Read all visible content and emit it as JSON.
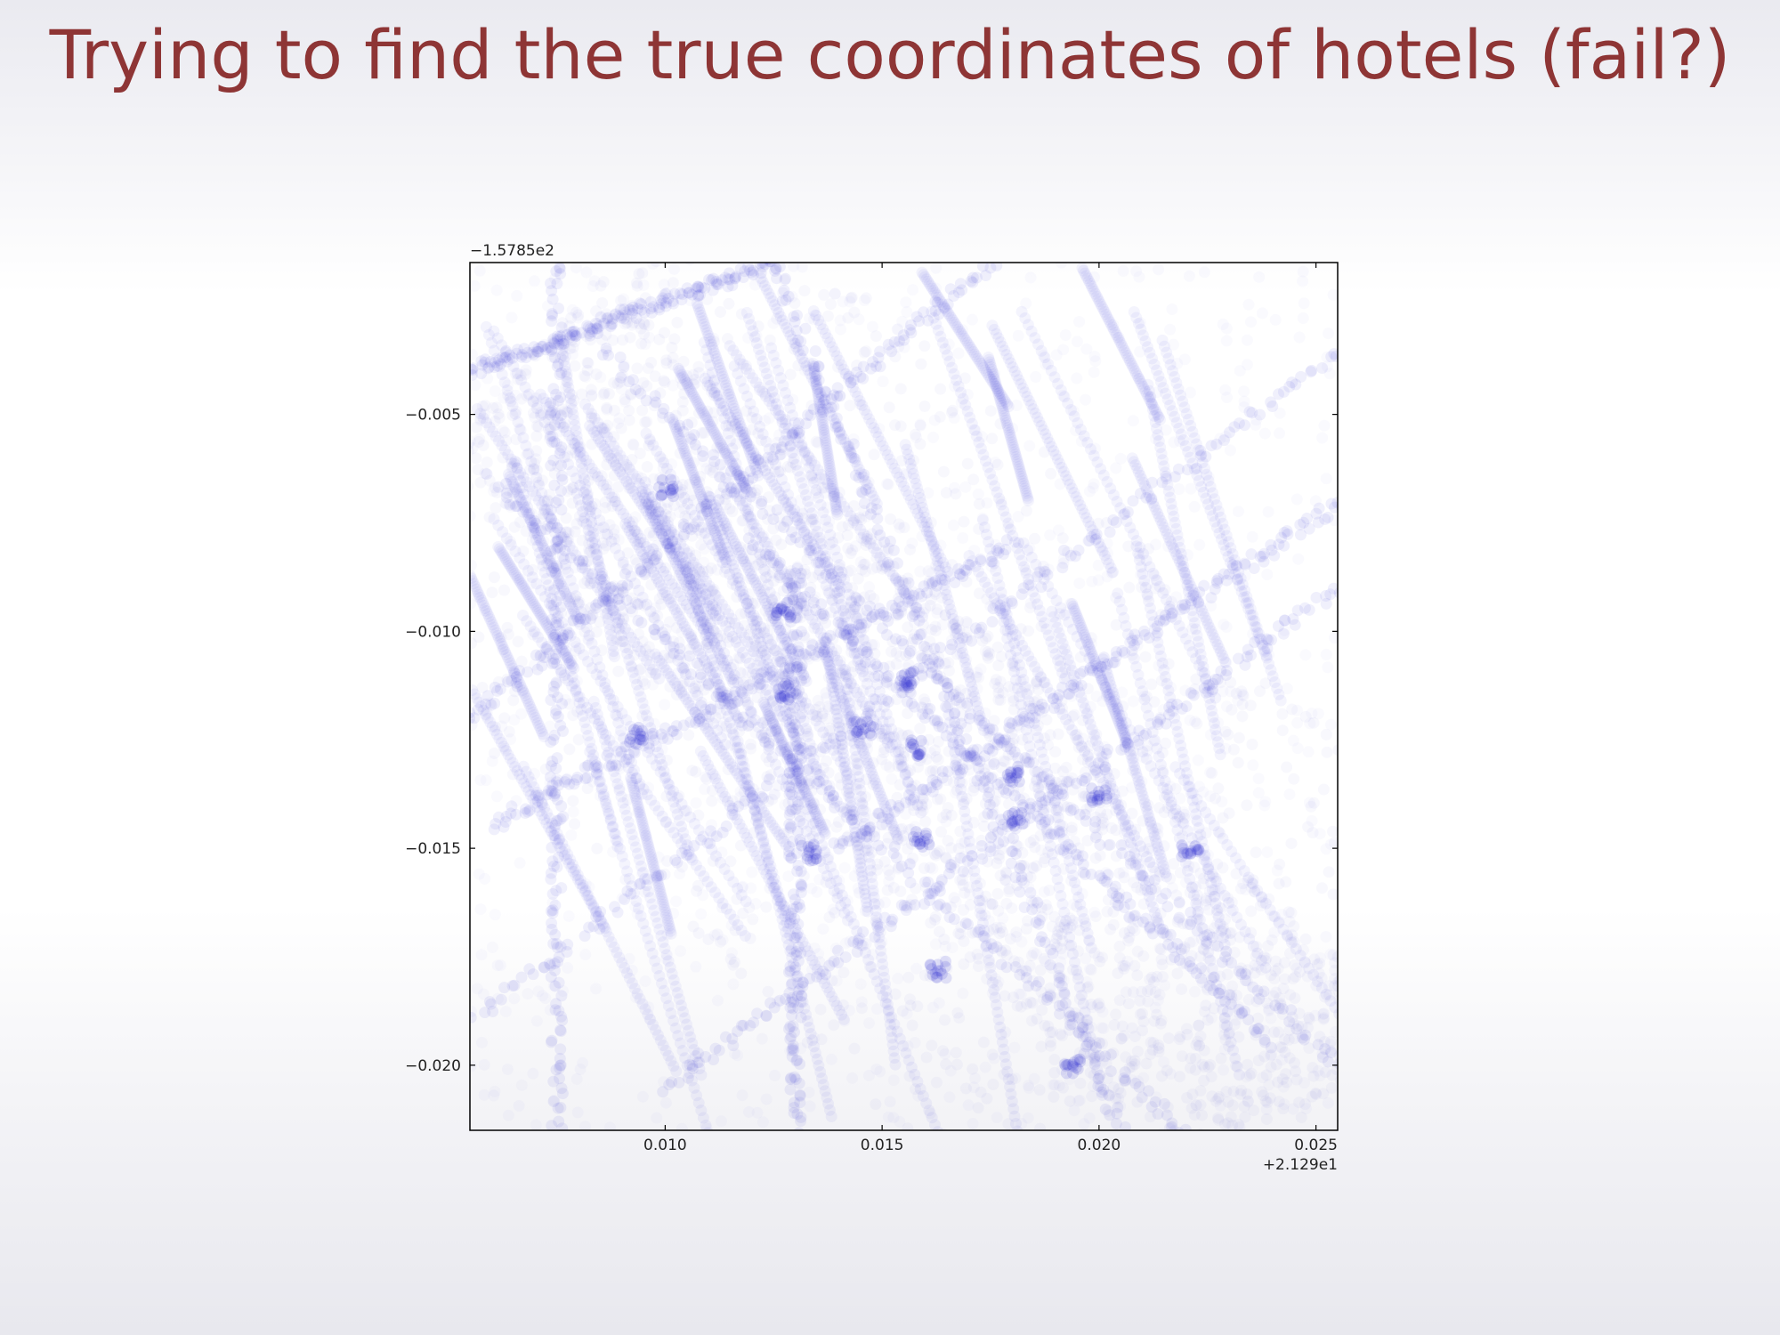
{
  "slide": {
    "title": "Trying to find the true coordinates of hotels (fail?)"
  },
  "colors": {
    "title": "#8e3535",
    "marker": "#1a1acc",
    "axis": "#000000"
  },
  "chart_data": {
    "type": "scatter",
    "title": "",
    "xlabel": "",
    "ylabel": "",
    "grid": false,
    "x_offset_label": "+2.129e1",
    "y_offset_label": "−1.5785e2",
    "xlim": [
      0.0055,
      0.0255
    ],
    "ylim": [
      -0.0215,
      -0.0015
    ],
    "x_ticks": [
      {
        "value": 0.01,
        "label": "0.010"
      },
      {
        "value": 0.015,
        "label": "0.015"
      },
      {
        "value": 0.02,
        "label": "0.020"
      },
      {
        "value": 0.025,
        "label": "0.025"
      }
    ],
    "y_ticks": [
      {
        "value": -0.005,
        "label": "−0.005"
      },
      {
        "value": -0.01,
        "label": "−0.010"
      },
      {
        "value": -0.015,
        "label": "−0.015"
      },
      {
        "value": -0.02,
        "label": "−0.020"
      }
    ],
    "marker_alpha": 0.03,
    "dense_band": {
      "from": [
        0.0065,
        -0.004
      ],
      "to": [
        0.025,
        -0.021
      ]
    },
    "visible_streaks": [
      {
        "from": [
          0.0055,
          -0.004
        ],
        "to": [
          0.0125,
          -0.0015
        ]
      },
      {
        "from": [
          0.0055,
          -0.019
        ],
        "to": [
          0.0255,
          -0.0035
        ]
      },
      {
        "from": [
          0.0055,
          -0.012
        ],
        "to": [
          0.0175,
          -0.0015
        ]
      },
      {
        "from": [
          0.0075,
          -0.0015
        ],
        "to": [
          0.0075,
          -0.0215
        ]
      },
      {
        "from": [
          0.0125,
          -0.0015
        ],
        "to": [
          0.0205,
          -0.0215
        ]
      },
      {
        "from": [
          0.0085,
          -0.0035
        ],
        "to": [
          0.0255,
          -0.02
        ]
      },
      {
        "from": [
          0.012,
          -0.008
        ],
        "to": [
          0.024,
          -0.0195
        ]
      },
      {
        "from": [
          0.006,
          -0.0065
        ],
        "to": [
          0.022,
          -0.0215
        ]
      },
      {
        "from": [
          0.014,
          -0.015
        ],
        "to": [
          0.0255,
          -0.007
        ]
      },
      {
        "from": [
          0.01,
          -0.0205
        ],
        "to": [
          0.0255,
          -0.009
        ]
      },
      {
        "from": [
          0.013,
          -0.0085
        ],
        "to": [
          0.013,
          -0.0215
        ]
      },
      {
        "from": [
          0.006,
          -0.0145
        ],
        "to": [
          0.018,
          -0.008
        ]
      }
    ],
    "dense_spots": [
      [
        0.0127,
        -0.0095
      ],
      [
        0.0128,
        -0.0114
      ],
      [
        0.0146,
        -0.0122
      ],
      [
        0.0156,
        -0.0111
      ],
      [
        0.0181,
        -0.0143
      ],
      [
        0.018,
        -0.0133
      ],
      [
        0.0133,
        -0.0151
      ],
      [
        0.0159,
        -0.0148
      ],
      [
        0.0163,
        -0.0178
      ],
      [
        0.0194,
        -0.02
      ],
      [
        0.01,
        -0.0067
      ],
      [
        0.0093,
        -0.0124
      ],
      [
        0.02,
        -0.0138
      ],
      [
        0.0221,
        -0.015
      ],
      [
        0.0158,
        -0.0127
      ]
    ]
  }
}
